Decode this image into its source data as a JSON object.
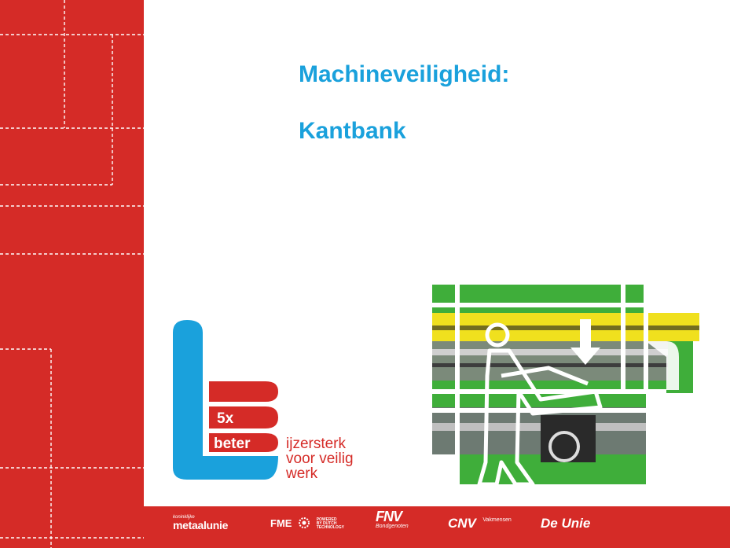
{
  "slide": {
    "title_line1": "Machineveiligheid:",
    "title_line2": "Kantbank"
  },
  "logo": {
    "badge": "5x",
    "word": "beter",
    "tagline_1": "ijzersterk",
    "tagline_2": "voor veilig",
    "tagline_3": "werk"
  },
  "sponsors": {
    "metaalunie_small": "koninklijke",
    "metaalunie_name": "metaalunie",
    "fme_name": "FME",
    "fme_tag_1": "POWERED",
    "fme_tag_2": "BY DUTCH",
    "fme_tag_3": "TECHNOLOGY",
    "fnv_name": "FNV",
    "fnv_sub": "Bondgenoten",
    "cnv_name": "CNV",
    "cnv_sub": "Vakmensen",
    "unie_name": "De Unie"
  },
  "colors": {
    "brand_red": "#d52b27",
    "title_blue": "#1aa1dc",
    "machine_green": "#3fae3a",
    "machine_yellow": "#f0e01e",
    "white": "#ffffff"
  },
  "icons": [
    "press-brake-illustration",
    "5x-beter-logo",
    "fme-gear-icon"
  ]
}
